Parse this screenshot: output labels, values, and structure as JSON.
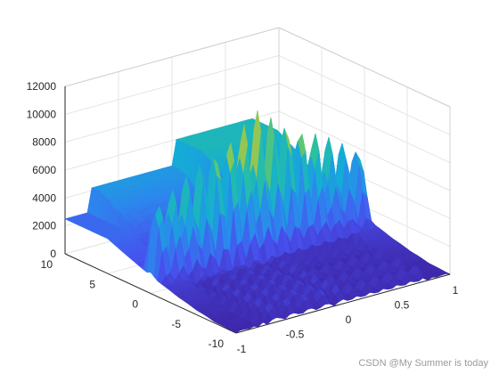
{
  "chart_data": {
    "type": "surface",
    "title": "",
    "xlabel": "",
    "ylabel": "",
    "zlabel": "",
    "colormap": "parula",
    "grid": true,
    "xlim": [
      -1,
      1
    ],
    "ylim": [
      -10,
      10
    ],
    "zlim": [
      0,
      12000
    ],
    "x_ticks": [
      "-1",
      "-0.5",
      "0",
      "0.5",
      "1"
    ],
    "y_ticks": [
      "-10",
      "-5",
      "0",
      "5",
      "10"
    ],
    "z_ticks": [
      "0",
      "2000",
      "4000",
      "6000",
      "8000",
      "10000",
      "12000"
    ],
    "approx_peak": {
      "x": 0,
      "y": 0,
      "z": 11000
    },
    "plateau_level": 6000,
    "edge_level": 2500
  },
  "watermark": "CSDN @My Summer is today"
}
